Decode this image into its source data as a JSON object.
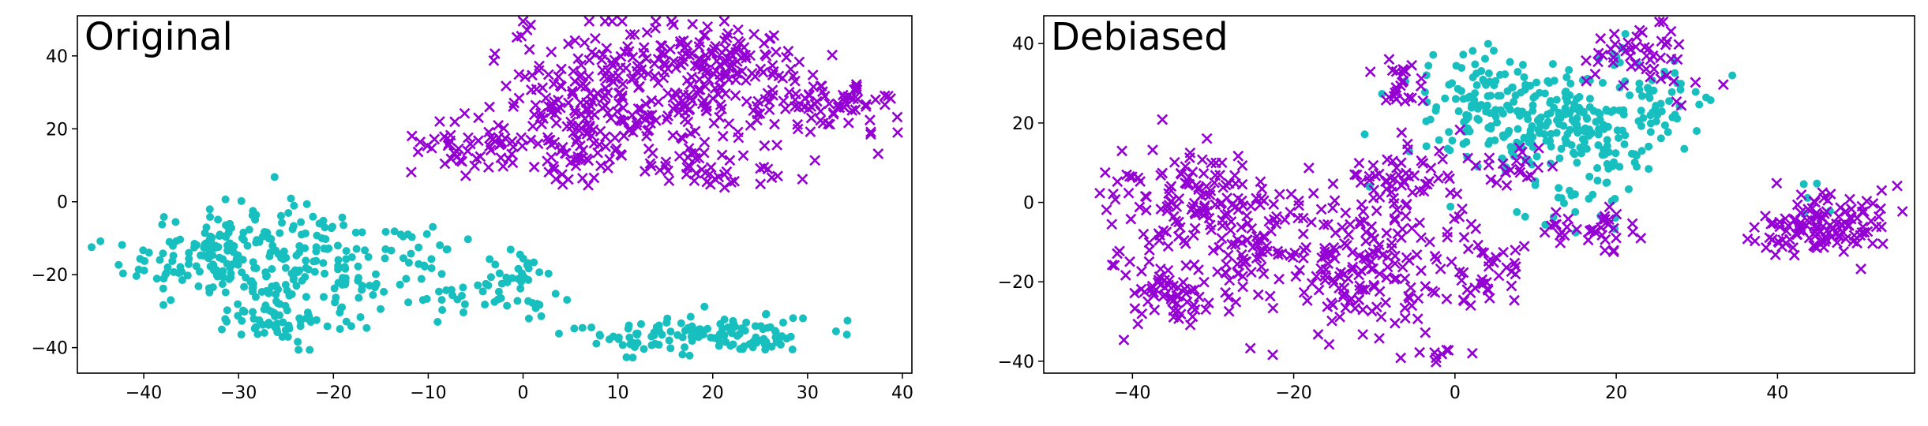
{
  "colors": {
    "cyan": "#17BFBF",
    "purple": "#9400D3",
    "axis": "#000000",
    "background": "#ffffff"
  },
  "chart_data": [
    {
      "type": "scatter",
      "title": "Original",
      "xlabel": "",
      "ylabel": "",
      "xlim": [
        -47,
        41
      ],
      "ylim": [
        -47,
        51
      ],
      "xticks": [
        -40,
        -30,
        -20,
        -10,
        0,
        10,
        20,
        30,
        40
      ],
      "yticks": [
        -40,
        -20,
        0,
        20,
        40
      ],
      "grid": false,
      "legend": "none",
      "series": [
        {
          "marker": "dot",
          "color": "#17BFBF",
          "clusters": [
            {
              "cx": -32,
              "cy": -15,
              "sx": 5,
              "sy": 7,
              "n": 170
            },
            {
              "cx": -24,
              "cy": -20,
              "sx": 4,
              "sy": 9,
              "n": 80
            },
            {
              "cx": -25,
              "cy": -33,
              "sx": 3,
              "sy": 2.5,
              "n": 40
            },
            {
              "cx": -18,
              "cy": -17,
              "sx": 2.5,
              "sy": 6,
              "n": 35
            },
            {
              "cx": -11,
              "cy": -13,
              "sx": 3.5,
              "sy": 3,
              "n": 30
            },
            {
              "cx": -5,
              "cy": -26,
              "sx": 4.5,
              "sy": 4,
              "n": 45
            },
            {
              "cx": 0,
              "cy": -20,
              "sx": 1.5,
              "sy": 4,
              "n": 15
            },
            {
              "cx": 18,
              "cy": -36,
              "sx": 6,
              "sy": 3,
              "n": 110
            },
            {
              "cx": 26,
              "cy": -38,
              "sx": 2,
              "sy": 1.5,
              "n": 20
            }
          ]
        },
        {
          "marker": "x",
          "color": "#9400D3",
          "clusters": [
            {
              "cx": 14,
              "cy": 32,
              "sx": 8,
              "sy": 9,
              "n": 260
            },
            {
              "cx": 32,
              "cy": 26,
              "sx": 4,
              "sy": 3.5,
              "n": 70
            },
            {
              "cx": 22,
              "cy": 40,
              "sx": 4,
              "sy": 4,
              "n": 60
            },
            {
              "cx": 5,
              "cy": 14,
              "sx": 5,
              "sy": 5,
              "n": 90
            },
            {
              "cx": -6,
              "cy": 16,
              "sx": 3,
              "sy": 4,
              "n": 40
            },
            {
              "cx": 5,
              "cy": 28,
              "sx": 3,
              "sy": 3,
              "n": 30
            },
            {
              "cx": 21,
              "cy": 10,
              "sx": 4,
              "sy": 4,
              "n": 40
            }
          ]
        }
      ]
    },
    {
      "type": "scatter",
      "title": "Debiased",
      "xlabel": "",
      "ylabel": "",
      "xlim": [
        -51,
        57
      ],
      "ylim": [
        -43,
        47
      ],
      "xticks": [
        -40,
        -20,
        0,
        20,
        40
      ],
      "yticks": [
        -40,
        -20,
        0,
        20,
        40
      ],
      "grid": false,
      "legend": "none",
      "series": [
        {
          "marker": "dot",
          "color": "#17BFBF",
          "clusters": [
            {
              "cx": 12,
              "cy": 20,
              "sx": 7,
              "sy": 7,
              "n": 230
            },
            {
              "cx": 2,
              "cy": 28,
              "sx": 5,
              "sy": 6,
              "n": 60
            },
            {
              "cx": 22,
              "cy": 25,
              "sx": 5,
              "sy": 7,
              "n": 60
            },
            {
              "cx": 16,
              "cy": 0,
              "sx": 4,
              "sy": 4,
              "n": 25
            },
            {
              "cx": 45,
              "cy": 2,
              "sx": 2,
              "sy": 2,
              "n": 5
            }
          ]
        },
        {
          "marker": "x",
          "color": "#9400D3",
          "clusters": [
            {
              "cx": -34,
              "cy": 2,
              "sx": 5,
              "sy": 6,
              "n": 100
            },
            {
              "cx": -37,
              "cy": -22,
              "sx": 3.5,
              "sy": 4,
              "n": 60
            },
            {
              "cx": -26,
              "cy": -12,
              "sx": 5,
              "sy": 9,
              "n": 110
            },
            {
              "cx": -12,
              "cy": -15,
              "sx": 5,
              "sy": 9,
              "n": 150
            },
            {
              "cx": -5,
              "cy": 4,
              "sx": 4,
              "sy": 5,
              "n": 60
            },
            {
              "cx": 3,
              "cy": -18,
              "sx": 3,
              "sy": 6,
              "n": 40
            },
            {
              "cx": 46,
              "cy": -6,
              "sx": 4.5,
              "sy": 4,
              "n": 120
            },
            {
              "cx": 24,
              "cy": 36,
              "sx": 4,
              "sy": 5,
              "n": 50
            },
            {
              "cx": -7,
              "cy": 30,
              "sx": 2,
              "sy": 3,
              "n": 25
            },
            {
              "cx": 17,
              "cy": -7,
              "sx": 4,
              "sy": 3,
              "n": 35
            },
            {
              "cx": 8,
              "cy": 8,
              "sx": 3,
              "sy": 3,
              "n": 20
            },
            {
              "cx": -2,
              "cy": -38,
              "sx": 1.5,
              "sy": 1,
              "n": 8
            }
          ]
        }
      ]
    }
  ]
}
